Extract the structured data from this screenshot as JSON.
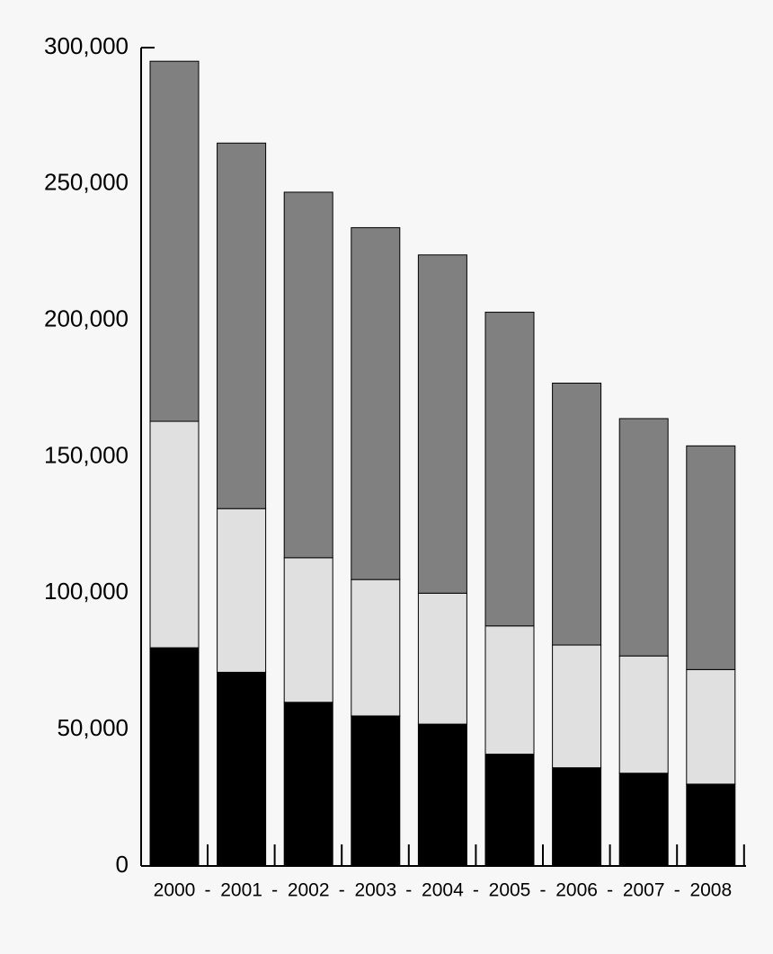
{
  "chart_data": {
    "type": "stacked-bar",
    "categories": [
      "2000",
      "2001",
      "2002",
      "2003",
      "2004",
      "2005",
      "2006",
      "2007",
      "2008"
    ],
    "category_separator": "-",
    "series": [
      {
        "color": "#000000",
        "values": [
          80000,
          71000,
          60000,
          55000,
          52000,
          41000,
          36000,
          34000,
          30000
        ]
      },
      {
        "color": "#e0e0e0",
        "values": [
          83000,
          60000,
          53000,
          50000,
          48000,
          47000,
          45000,
          43000,
          42000
        ]
      },
      {
        "color": "#808080",
        "values": [
          132000,
          134000,
          134000,
          129000,
          124000,
          115000,
          96000,
          87000,
          82000
        ]
      }
    ],
    "ylim": [
      0,
      300000
    ],
    "yticks": [
      0,
      {
        "value": 50000,
        "label": "50,000"
      },
      {
        "value": 100000,
        "label": "100,000"
      },
      {
        "value": 150000,
        "label": "150,000"
      },
      {
        "value": 200000,
        "label": "200,000"
      },
      {
        "value": 250000,
        "label": "250,000"
      },
      {
        "value": 300000,
        "label": "300,000"
      }
    ],
    "grid": false
  }
}
